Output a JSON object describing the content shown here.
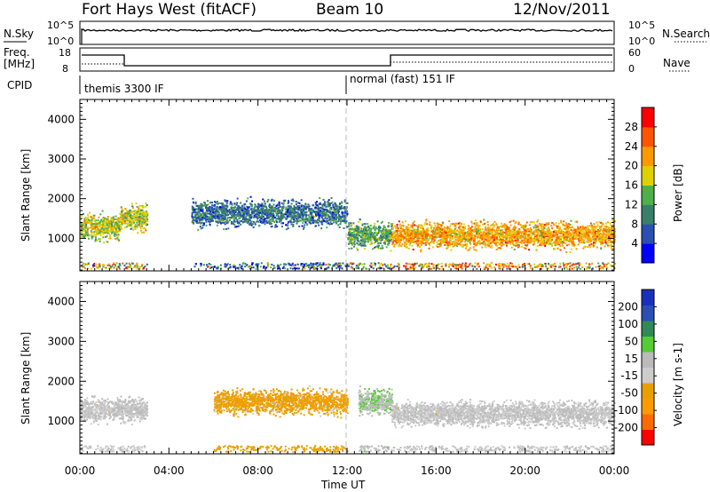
{
  "header": {
    "station": "Fort Hays West (fitACF)",
    "beam": "Beam 10",
    "date": "12/Nov/2011"
  },
  "noise_panel": {
    "left_label": "N.Sky",
    "right_label": "N.Search",
    "left_ticks": [
      "10^5",
      "10^0"
    ],
    "right_ticks": [
      "10^5",
      "10^0"
    ]
  },
  "freq_panel": {
    "label_line1": "Freq.",
    "label_line2": "[MHz]",
    "left_ticks": [
      "18",
      "8"
    ],
    "right_label": "Nave",
    "right_ticks": [
      "60",
      "0"
    ]
  },
  "cpid": {
    "label": "CPID",
    "modes": [
      {
        "name": "themis 3300 IF",
        "start_hour": 0
      },
      {
        "name": "normal (fast) 151 IF",
        "start_hour": 12
      }
    ]
  },
  "colors": {
    "power_scale": [
      "#0000ff",
      "#2a4fb0",
      "#3a7f6a",
      "#4db04d",
      "#e0d000",
      "#ff9900",
      "#ff5500",
      "#ff0000"
    ],
    "velocity_scale": [
      "#ff0000",
      "#ff6a00",
      "#ff9b00",
      "#e8a000",
      "#cccccc",
      "#bbbbbb",
      "#55cc33",
      "#2f8a55",
      "#2a4fb0",
      "#1a2fbd"
    ]
  },
  "chart_data": [
    {
      "type": "heatmap",
      "title": "Power",
      "ylabel": "Slant Range [km]",
      "xlabel": "Time UT",
      "x_ticks": [
        "00:00",
        "04:00",
        "08:00",
        "12:00",
        "16:00",
        "20:00",
        "00:00"
      ],
      "x_range_hours": [
        0,
        24
      ],
      "y_ticks": [
        "1000",
        "2000",
        "3000",
        "4000"
      ],
      "ylim": [
        180,
        4500
      ],
      "colorbar": {
        "label": "Power [dB]",
        "ticks": [
          "28",
          "24",
          "20",
          "16",
          "12",
          "8",
          "4"
        ],
        "range": [
          0,
          30
        ]
      },
      "echo_bands": [
        {
          "t_start": 0.0,
          "t_end": 1.8,
          "range_center": 1300,
          "value": 16
        },
        {
          "t_start": 1.8,
          "t_end": 3.0,
          "range_center": 1550,
          "value": 16
        },
        {
          "t_start": 5.0,
          "t_end": 12.0,
          "range_center": 1650,
          "value": 8
        },
        {
          "t_start": 12.0,
          "t_end": 14.0,
          "range_center": 1100,
          "value": 12
        },
        {
          "t_start": 14.0,
          "t_end": 24.0,
          "range_center": 1100,
          "value": 20
        }
      ]
    },
    {
      "type": "heatmap",
      "title": "Velocity",
      "ylabel": "Slant Range [km]",
      "xlabel": "Time UT",
      "x_ticks": [
        "00:00",
        "04:00",
        "08:00",
        "12:00",
        "16:00",
        "20:00",
        "00:00"
      ],
      "x_range_hours": [
        0,
        24
      ],
      "y_ticks": [
        "1000",
        "2000",
        "3000",
        "4000"
      ],
      "ylim": [
        180,
        4500
      ],
      "colorbar": {
        "label": "Velocity [m s-1]",
        "ticks": [
          "200",
          "100",
          "50",
          "15",
          "-15",
          "-50",
          "-100",
          "-200"
        ],
        "range": [
          -250,
          250
        ]
      },
      "echo_bands": [
        {
          "t_start": 0.0,
          "t_end": 3.0,
          "range_center": 1300,
          "value": 0
        },
        {
          "t_start": 6.0,
          "t_end": 12.0,
          "range_center": 1500,
          "value": -80
        },
        {
          "t_start": 12.5,
          "t_end": 14.0,
          "range_center": 1500,
          "value": 40
        },
        {
          "t_start": 14.0,
          "t_end": 24.0,
          "range_center": 1200,
          "value": 0
        }
      ]
    }
  ]
}
